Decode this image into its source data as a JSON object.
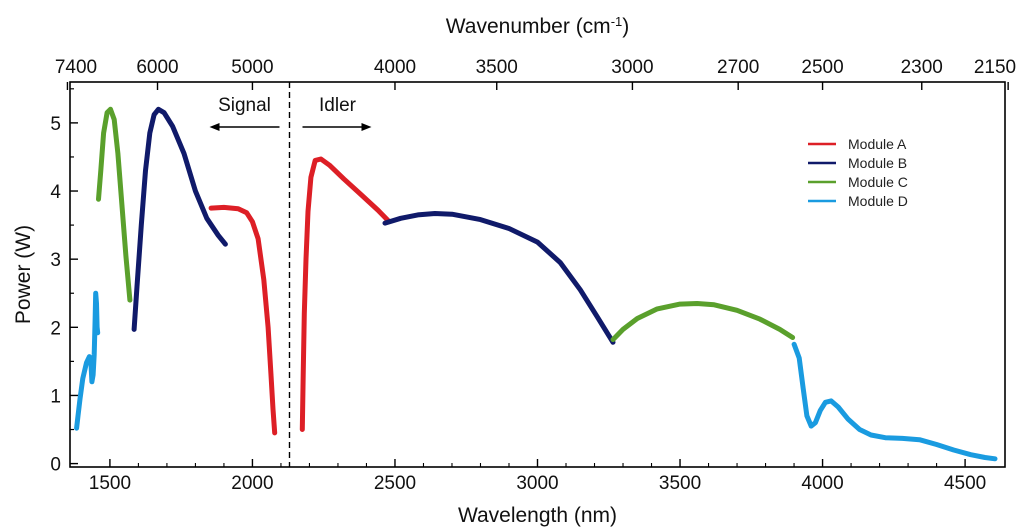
{
  "chart_data": {
    "type": "line",
    "xlabel": "Wavelength (nm)",
    "ylabel": "Power (W)",
    "top_xlabel": "Wavenumber (cm",
    "top_xlabel_sup": "-1",
    "top_xlabel_end": ")",
    "xlim": [
      1360,
      4640
    ],
    "ylim": [
      -0.05,
      5.6
    ],
    "x_ticks": [
      1500,
      2000,
      2500,
      3000,
      3500,
      4000,
      4500
    ],
    "y_ticks": [
      0,
      1,
      2,
      3,
      4,
      5
    ],
    "top_ticks": [
      {
        "label": "7400",
        "wavelength": 1351
      },
      {
        "label": "6000",
        "wavelength": 1667
      },
      {
        "label": "5000",
        "wavelength": 2000
      },
      {
        "label": "4000",
        "wavelength": 2500
      },
      {
        "label": "3500",
        "wavelength": 2857
      },
      {
        "label": "3000",
        "wavelength": 3333
      },
      {
        "label": "2700",
        "wavelength": 3704
      },
      {
        "label": "2500",
        "wavelength": 4000
      },
      {
        "label": "2300",
        "wavelength": 4348
      },
      {
        "label": "2150",
        "wavelength": 4651
      }
    ],
    "degeneracy_line_x": 2130,
    "annotations": [
      {
        "text": "Signal",
        "arrow": "left"
      },
      {
        "text": "Idler",
        "arrow": "right"
      }
    ],
    "legend_position": "top-right",
    "series": [
      {
        "name": "Module  A",
        "color": "#dd1f26",
        "segments": [
          [
            [
              1855,
              3.75
            ],
            [
              1900,
              3.76
            ],
            [
              1950,
              3.74
            ],
            [
              1980,
              3.68
            ],
            [
              2000,
              3.55
            ],
            [
              2020,
              3.3
            ],
            [
              2040,
              2.7
            ],
            [
              2055,
              2.0
            ],
            [
              2065,
              1.3
            ],
            [
              2072,
              0.8
            ],
            [
              2078,
              0.45
            ]
          ],
          [
            [
              2175,
              0.5
            ],
            [
              2178,
              1.3
            ],
            [
              2182,
              2.2
            ],
            [
              2188,
              3.0
            ],
            [
              2195,
              3.7
            ],
            [
              2205,
              4.2
            ],
            [
              2220,
              4.45
            ],
            [
              2240,
              4.47
            ],
            [
              2270,
              4.38
            ],
            [
              2320,
              4.18
            ],
            [
              2380,
              3.95
            ],
            [
              2440,
              3.72
            ],
            [
              2475,
              3.57
            ]
          ]
        ]
      },
      {
        "name": "Module  B",
        "color": "#101a6a",
        "segments": [
          [
            [
              1585,
              1.97
            ],
            [
              1595,
              2.6
            ],
            [
              1610,
              3.5
            ],
            [
              1625,
              4.3
            ],
            [
              1640,
              4.85
            ],
            [
              1655,
              5.12
            ],
            [
              1670,
              5.2
            ],
            [
              1690,
              5.15
            ],
            [
              1720,
              4.95
            ],
            [
              1760,
              4.55
            ],
            [
              1800,
              4.0
            ],
            [
              1840,
              3.6
            ],
            [
              1880,
              3.35
            ],
            [
              1905,
              3.22
            ]
          ],
          [
            [
              2465,
              3.53
            ],
            [
              2520,
              3.6
            ],
            [
              2580,
              3.65
            ],
            [
              2640,
              3.67
            ],
            [
              2700,
              3.66
            ],
            [
              2800,
              3.58
            ],
            [
              2900,
              3.45
            ],
            [
              3000,
              3.25
            ],
            [
              3080,
              2.95
            ],
            [
              3150,
              2.55
            ],
            [
              3210,
              2.15
            ],
            [
              3265,
              1.78
            ]
          ]
        ]
      },
      {
        "name": "Module  C",
        "color": "#5aa02c",
        "segments": [
          [
            [
              1460,
              3.88
            ],
            [
              1468,
              4.3
            ],
            [
              1478,
              4.85
            ],
            [
              1490,
              5.15
            ],
            [
              1502,
              5.2
            ],
            [
              1515,
              5.05
            ],
            [
              1528,
              4.55
            ],
            [
              1542,
              3.8
            ],
            [
              1556,
              3.05
            ],
            [
              1570,
              2.4
            ]
          ],
          [
            [
              3265,
              1.82
            ],
            [
              3300,
              1.97
            ],
            [
              3350,
              2.13
            ],
            [
              3420,
              2.27
            ],
            [
              3500,
              2.34
            ],
            [
              3560,
              2.35
            ],
            [
              3620,
              2.33
            ],
            [
              3700,
              2.25
            ],
            [
              3780,
              2.12
            ],
            [
              3850,
              1.97
            ],
            [
              3895,
              1.85
            ]
          ]
        ]
      },
      {
        "name": "Module  D",
        "color": "#1a9be0",
        "segments": [
          [
            [
              1383,
              0.52
            ],
            [
              1388,
              0.7
            ],
            [
              1395,
              0.95
            ],
            [
              1405,
              1.25
            ],
            [
              1418,
              1.48
            ],
            [
              1428,
              1.57
            ],
            [
              1433,
              1.52
            ],
            [
              1437,
              1.2
            ],
            [
              1441,
              1.3
            ],
            [
              1445,
              1.6
            ],
            [
              1448,
              2.1
            ],
            [
              1450,
              2.5
            ],
            [
              1453,
              2.35
            ],
            [
              1455,
              2.0
            ],
            [
              1457,
              1.92
            ]
          ],
          [
            [
              3900,
              1.75
            ],
            [
              3918,
              1.55
            ],
            [
              3932,
              1.1
            ],
            [
              3945,
              0.7
            ],
            [
              3960,
              0.55
            ],
            [
              3975,
              0.6
            ],
            [
              3992,
              0.78
            ],
            [
              4010,
              0.9
            ],
            [
              4030,
              0.92
            ],
            [
              4055,
              0.83
            ],
            [
              4090,
              0.65
            ],
            [
              4130,
              0.5
            ],
            [
              4170,
              0.42
            ],
            [
              4220,
              0.38
            ],
            [
              4280,
              0.37
            ],
            [
              4340,
              0.35
            ],
            [
              4400,
              0.28
            ],
            [
              4460,
              0.2
            ],
            [
              4520,
              0.13
            ],
            [
              4570,
              0.09
            ],
            [
              4605,
              0.07
            ]
          ]
        ]
      }
    ]
  }
}
